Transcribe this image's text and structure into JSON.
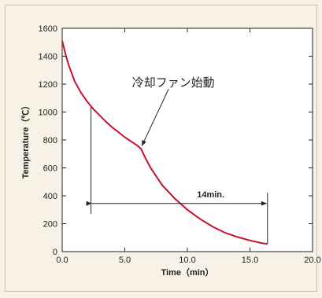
{
  "chart_data": {
    "type": "line",
    "xlabel": "Time（min）",
    "ylabel": "Temperature（℃）",
    "xlim": [
      0,
      20
    ],
    "ylim": [
      0,
      1600
    ],
    "x_ticks": [
      "0.0",
      "5.0",
      "10.0",
      "15.0",
      "20.0"
    ],
    "y_ticks": [
      "0",
      "200",
      "400",
      "600",
      "800",
      "1000",
      "1200",
      "1400",
      "1600"
    ],
    "grid": false,
    "series": [
      {
        "color": "#c8102e",
        "x": [
          0.0,
          0.25,
          0.5,
          1.0,
          1.5,
          2.0,
          2.5,
          3.0,
          3.5,
          4.0,
          4.5,
          5.0,
          5.5,
          6.0,
          6.3,
          6.6,
          7.0,
          7.5,
          8.0,
          9.0,
          10.0,
          11.0,
          12.0,
          13.0,
          14.0,
          15.0,
          16.0,
          16.4
        ],
        "y": [
          1510,
          1420,
          1340,
          1220,
          1140,
          1075,
          1020,
          975,
          930,
          890,
          855,
          820,
          790,
          760,
          735,
          680,
          610,
          540,
          475,
          380,
          300,
          235,
          180,
          135,
          105,
          80,
          60,
          55
        ]
      }
    ],
    "annotations": {
      "fan_start": {
        "text": "冷却ファン始動",
        "x": 6.3,
        "y": 735
      },
      "duration": {
        "text": "14min.",
        "x_start": 2.3,
        "x_end": 16.4,
        "y": 345
      },
      "guide_lines": [
        {
          "x": 2.3,
          "y_from": 270,
          "y_to": 1045
        },
        {
          "x": 16.4,
          "y_from": 55,
          "y_to": 420
        }
      ]
    }
  }
}
